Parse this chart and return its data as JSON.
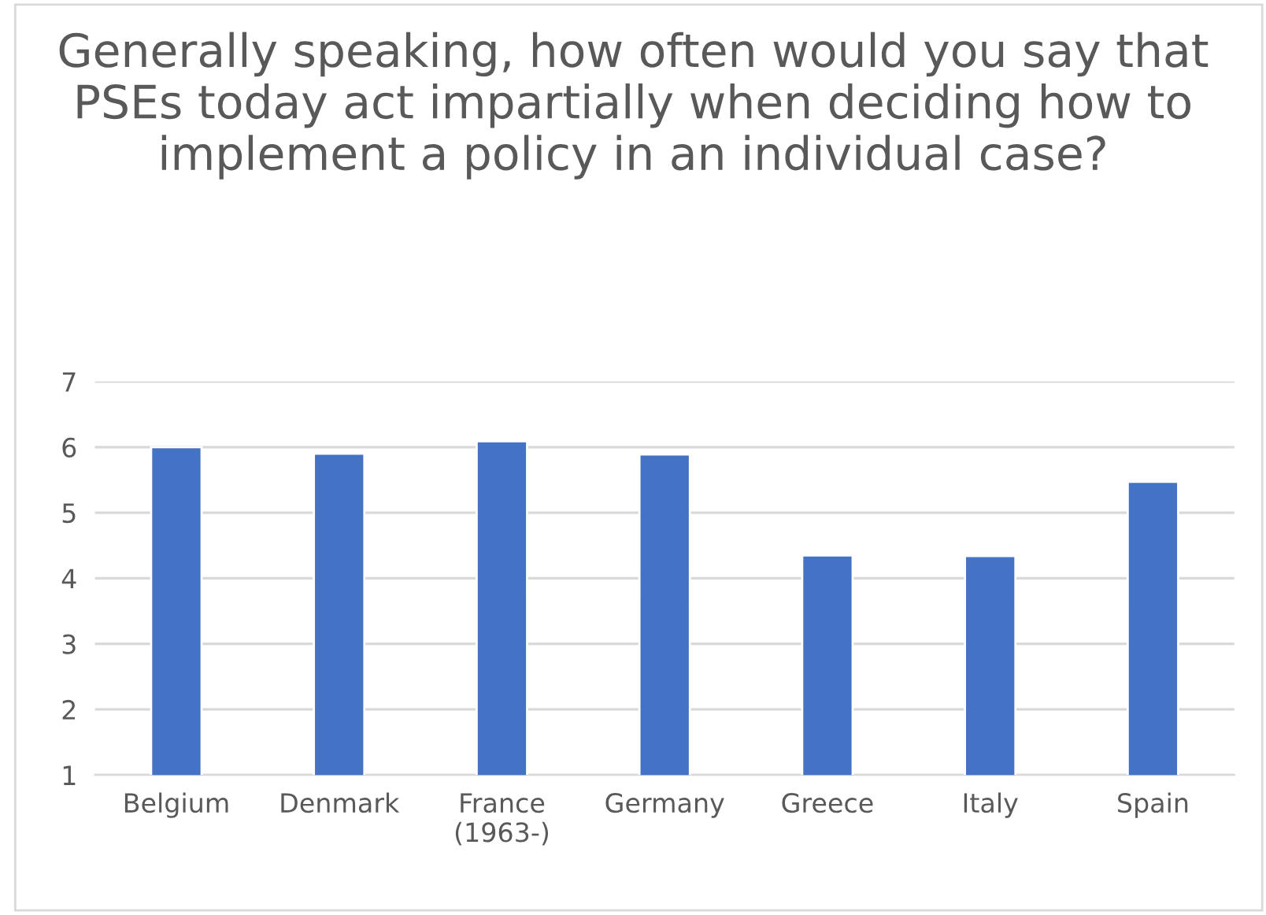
{
  "chart_data": {
    "type": "bar",
    "title": "Generally speaking, how often would you say that PSEs today act impartially when deciding how to implement a policy in an individual case?",
    "categories": [
      "Belgium",
      "Denmark",
      "France\n(1963-)",
      "Germany",
      "Greece",
      "Italy",
      "Spain"
    ],
    "values": [
      6.0,
      5.9,
      6.09,
      5.89,
      4.35,
      4.34,
      5.47
    ],
    "color": "#4472c4",
    "ylim": [
      1,
      7
    ],
    "yticks": [
      1,
      2,
      3,
      4,
      5,
      6,
      7
    ],
    "grid": "y",
    "legend": false
  }
}
